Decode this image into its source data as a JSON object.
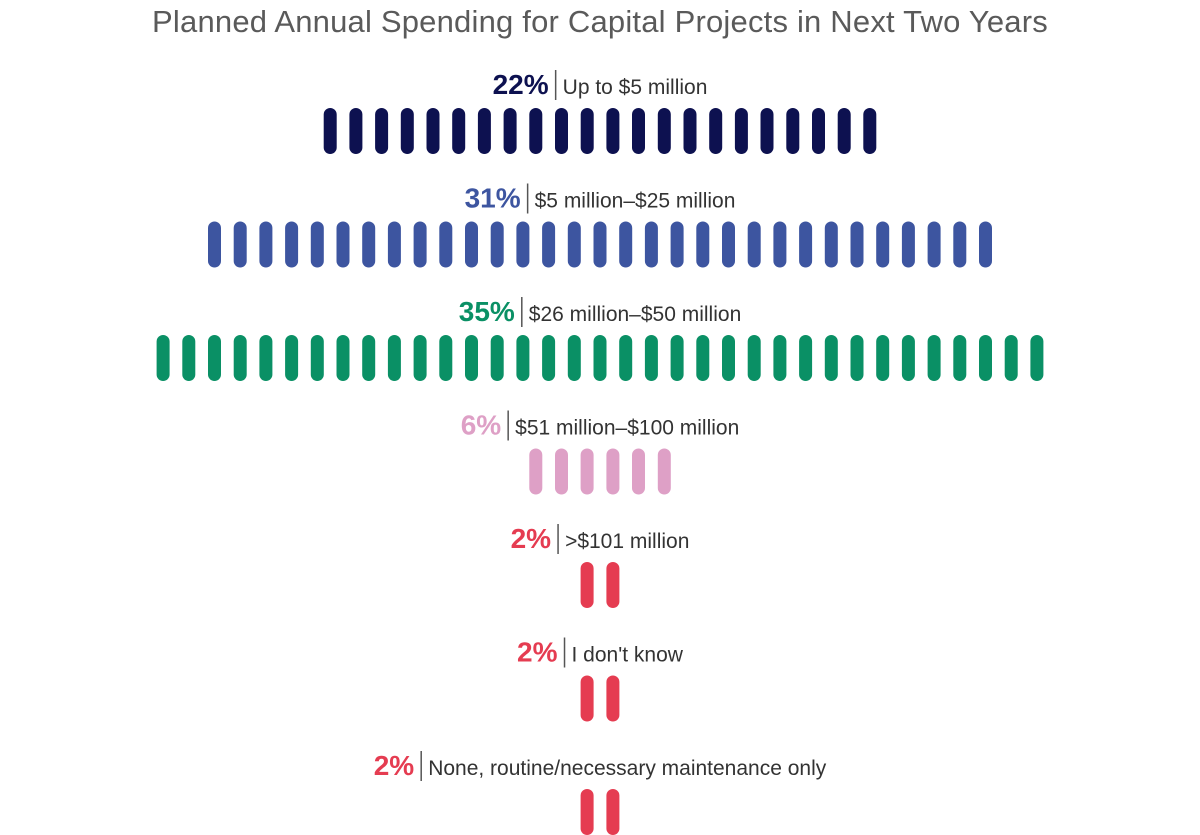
{
  "title": "Planned Annual Spending for Capital Projects in Next Two Years",
  "chart_data": {
    "type": "bar",
    "title": "Planned Annual Spending for Capital Projects in Next Two Years",
    "unit": "%",
    "categories": [
      "Up to $5 million",
      "$5 million–$25 million",
      "$26 million–$50 million",
      "$51 million–$100 million",
      ">$101 million",
      "I don't know",
      "None, routine/necessary maintenance only"
    ],
    "values": [
      22,
      31,
      35,
      6,
      2,
      2,
      2
    ],
    "value_labels": [
      "22%",
      "31%",
      "35%",
      "6%",
      "2%",
      "2%",
      "2%"
    ],
    "colors": [
      "#0d1150",
      "#3d55a0",
      "#0a9065",
      "#dea0c6",
      "#e53c51",
      "#e53c51",
      "#e53c51"
    ]
  }
}
